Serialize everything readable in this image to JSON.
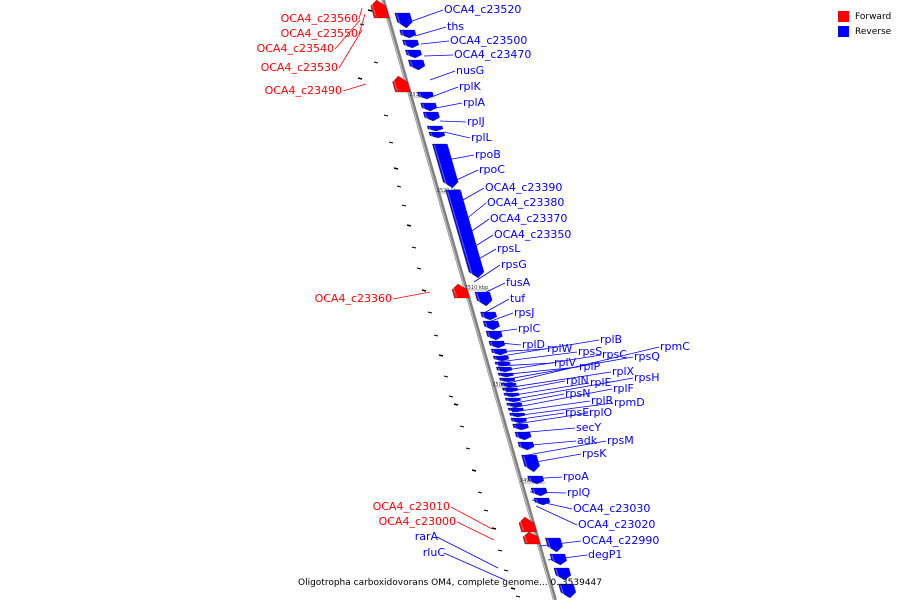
{
  "caption": "Oligotropha carboxidovorans OM4, complete genome... 0..3539447",
  "legend": [
    {
      "label": "Forward",
      "color": "#ff0000"
    },
    {
      "label": "Reverse",
      "color": "#0000ff"
    }
  ],
  "colors": {
    "forward": "#ff0000",
    "reverse": "#0000ff",
    "axis": "#808080"
  },
  "ticks": [
    {
      "label": "2530 kbp"
    },
    {
      "label": "2520 kbp"
    },
    {
      "label": "2510 kbp"
    },
    {
      "label": "2500 kbp"
    },
    {
      "label": "2490 kbp"
    }
  ],
  "forward_labels": [
    "OCA4_c23560",
    "OCA4_c23550",
    "OCA4_c23540",
    "OCA4_c23530",
    "OCA4_c23490",
    "OCA4_c23360",
    "OCA4_c23010",
    "OCA4_c23000"
  ],
  "reverse_labels": [
    "OCA4_c23520",
    "ths",
    "OCA4_c23500",
    "OCA4_c23470",
    "nusG",
    "rplK",
    "rplA",
    "rplJ",
    "rplL",
    "rpoB",
    "rpoC",
    "OCA4_c23390",
    "OCA4_c23380",
    "OCA4_c23370",
    "OCA4_c23350",
    "rpsL",
    "rpsG",
    "fusA",
    "tuf",
    "rpsJ",
    "rplC",
    "rplD",
    "rplW",
    "rplB",
    "rpsS",
    "rplV",
    "rpsC",
    "rplP",
    "rpsQ",
    "rpmC",
    "rplX",
    "rplN",
    "rplE",
    "rpsH",
    "rpsN",
    "rplF",
    "rplR",
    "rpmD",
    "rpsE",
    "rplO",
    "secY",
    "adk",
    "rpsM",
    "rpsK",
    "rpoA",
    "rplQ",
    "OCA4_c23030",
    "OCA4_c23020",
    "OCA4_c22990",
    "degP1",
    "rarA",
    "rluC"
  ]
}
